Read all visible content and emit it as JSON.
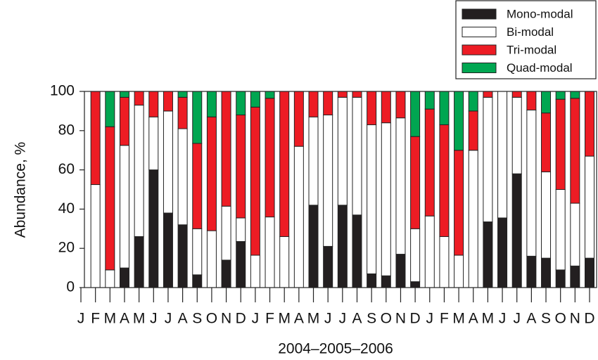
{
  "chart_data": {
    "type": "stacked_bar",
    "y_label": "Abundance, %",
    "x_label": "2004–2005–2006",
    "categories": [
      "J",
      "F",
      "M",
      "A",
      "M",
      "J",
      "J",
      "A",
      "S",
      "O",
      "N",
      "D",
      "J",
      "F",
      "M",
      "A",
      "M",
      "J",
      "J",
      "A",
      "S",
      "O",
      "N",
      "D",
      "J",
      "F",
      "M",
      "A",
      "M",
      "J",
      "J",
      "A",
      "S",
      "O",
      "N",
      "D"
    ],
    "series": [
      {
        "name": "Mono-modal",
        "color": "#231f20",
        "values": [
          0,
          0,
          0,
          10,
          26,
          60,
          38,
          32,
          6.5,
          0,
          14,
          23.5,
          0,
          0,
          0,
          0,
          42,
          21,
          42,
          37,
          7,
          6,
          17,
          3,
          0,
          0,
          0,
          0,
          33.5,
          35.5,
          58,
          16,
          15,
          9,
          11,
          15
        ]
      },
      {
        "name": "Bi-modal",
        "color": "#ffffff",
        "values": [
          0,
          52.5,
          9,
          62.5,
          67,
          27,
          52,
          49,
          23.5,
          29,
          27.5,
          12,
          16.5,
          36,
          26,
          72,
          45,
          67,
          55,
          60,
          76,
          78,
          69.5,
          27,
          36.5,
          26,
          16.5,
          70,
          63.5,
          64.5,
          39,
          74.5,
          44,
          41,
          32,
          52
        ]
      },
      {
        "name": "Tri-modal",
        "color": "#ed1c24",
        "values": [
          0,
          47.5,
          73,
          24.5,
          7,
          13,
          10,
          16,
          43.5,
          58,
          58.5,
          52.5,
          75.5,
          60.5,
          74,
          28,
          13,
          12,
          3,
          3,
          17,
          16,
          13.5,
          47,
          54.5,
          57,
          53.5,
          20,
          3,
          0,
          3,
          9.5,
          30,
          46,
          53.5,
          33
        ]
      },
      {
        "name": "Quad-modal",
        "color": "#00a651",
        "values": [
          0,
          0,
          18,
          3,
          0,
          0,
          0,
          3,
          26.5,
          13,
          0,
          12,
          8,
          3.5,
          0,
          0,
          0,
          0,
          0,
          0,
          0,
          0,
          0,
          23,
          9,
          17,
          30,
          10,
          0,
          0,
          0,
          0,
          11,
          4,
          3.5,
          0
        ]
      }
    ],
    "ylim": [
      0,
      100
    ],
    "yticks": [
      0,
      20,
      40,
      60,
      80,
      100
    ]
  }
}
